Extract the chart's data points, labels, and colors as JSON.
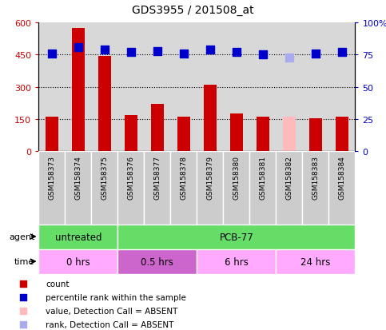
{
  "title": "GDS3955 / 201508_at",
  "samples": [
    "GSM158373",
    "GSM158374",
    "GSM158375",
    "GSM158376",
    "GSM158377",
    "GSM158378",
    "GSM158379",
    "GSM158380",
    "GSM158381",
    "GSM158382",
    "GSM158383",
    "GSM158384"
  ],
  "counts": [
    160,
    575,
    445,
    170,
    220,
    160,
    310,
    175,
    160,
    160,
    155,
    160
  ],
  "count_colors": [
    "#cc0000",
    "#cc0000",
    "#cc0000",
    "#cc0000",
    "#cc0000",
    "#cc0000",
    "#cc0000",
    "#cc0000",
    "#cc0000",
    "#ffbbbb",
    "#cc0000",
    "#cc0000"
  ],
  "percentile_ranks": [
    76,
    81,
    79,
    77,
    78,
    76,
    79,
    77,
    75,
    73,
    76,
    77
  ],
  "rank_colors": [
    "#0000cc",
    "#0000cc",
    "#0000cc",
    "#0000cc",
    "#0000cc",
    "#0000cc",
    "#0000cc",
    "#0000cc",
    "#0000cc",
    "#aaaaee",
    "#0000cc",
    "#0000cc"
  ],
  "ylim_left": [
    0,
    600
  ],
  "ylim_right": [
    0,
    100
  ],
  "yticks_left": [
    0,
    150,
    300,
    450,
    600
  ],
  "yticks_right": [
    0,
    25,
    50,
    75,
    100
  ],
  "ytick_labels_left": [
    "0",
    "150",
    "300",
    "450",
    "600"
  ],
  "ytick_labels_right": [
    "0",
    "25",
    "50",
    "75",
    "100%"
  ],
  "agent_groups": [
    {
      "label": "untreated",
      "start": 0,
      "end": 3,
      "color": "#66dd66"
    },
    {
      "label": "PCB-77",
      "start": 3,
      "end": 12,
      "color": "#66dd66"
    }
  ],
  "time_groups": [
    {
      "label": "0 hrs",
      "start": 0,
      "end": 3,
      "color": "#ffaaff"
    },
    {
      "label": "0.5 hrs",
      "start": 3,
      "end": 6,
      "color": "#cc66cc"
    },
    {
      "label": "6 hrs",
      "start": 6,
      "end": 9,
      "color": "#ffaaff"
    },
    {
      "label": "24 hrs",
      "start": 9,
      "end": 12,
      "color": "#ffaaff"
    }
  ],
  "legend_items": [
    {
      "label": "count",
      "color": "#cc0000"
    },
    {
      "label": "percentile rank within the sample",
      "color": "#0000cc"
    },
    {
      "label": "value, Detection Call = ABSENT",
      "color": "#ffbbbb"
    },
    {
      "label": "rank, Detection Call = ABSENT",
      "color": "#aaaaee"
    }
  ],
  "agent_label": "agent",
  "time_label": "time",
  "bar_width": 0.5,
  "dot_size": 50,
  "bg_color": "#ffffff",
  "plot_bg": "#d8d8d8",
  "tick_color_left": "#cc0000",
  "tick_color_right": "#0000cc"
}
